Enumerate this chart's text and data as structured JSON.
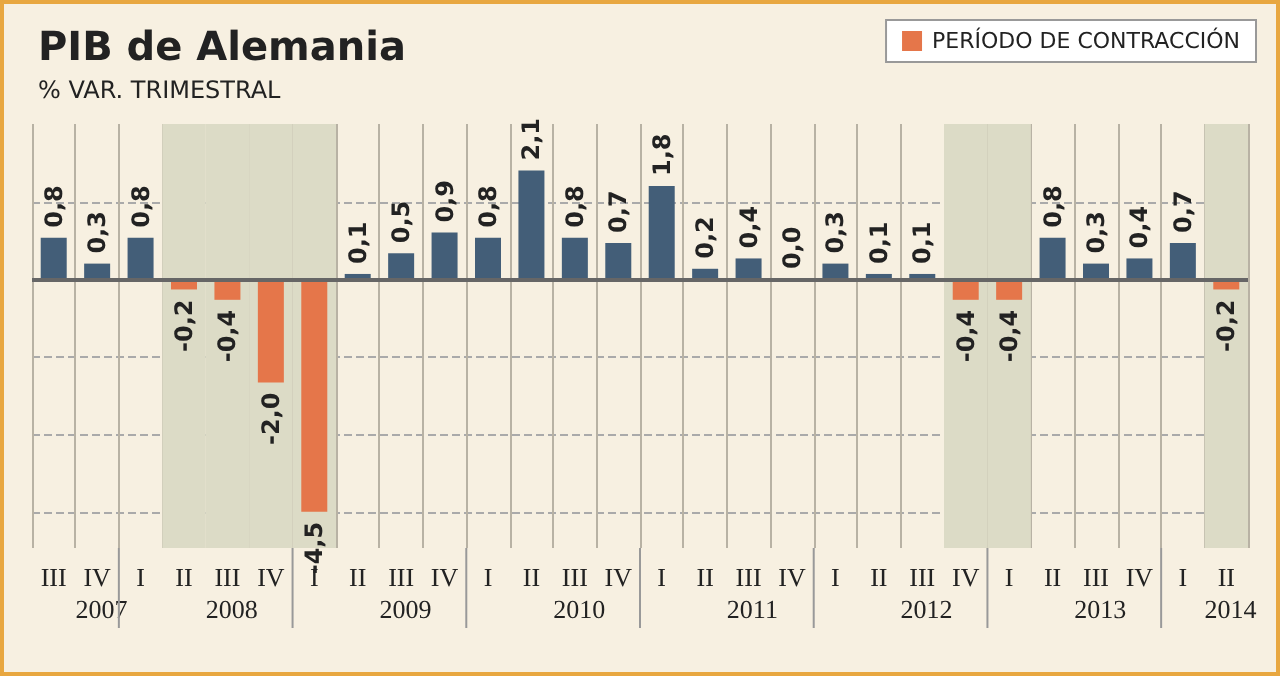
{
  "chart_data": {
    "type": "bar",
    "title": "PIB de Alemania",
    "subtitle": "% VAR. TRIMESTRAL",
    "categories": [
      "III",
      "IV",
      "I",
      "II",
      "III",
      "IV",
      "I",
      "II",
      "III",
      "IV",
      "I",
      "II",
      "III",
      "IV",
      "I",
      "II",
      "III",
      "IV",
      "I",
      "II",
      "III",
      "IV",
      "I",
      "II",
      "III",
      "IV",
      "I",
      "II"
    ],
    "annotations": [
      "2007",
      "2008",
      "2009",
      "2010",
      "2011",
      "2012",
      "2013",
      "2014"
    ],
    "stacked": true,
    "series": [
      {
        "color": "#435e78",
        "values": [
          0.8,
          0.3,
          0.8,
          null,
          null,
          null,
          null,
          0.1,
          0.5,
          0.9,
          0.8,
          2.1,
          0.8,
          0.7,
          1.8,
          0.2,
          0.4,
          0.0,
          0.3,
          0.1,
          0.1,
          null,
          null,
          0.8,
          0.3,
          0.4,
          0.7,
          null
        ],
        "value_labels": [
          "0,8",
          "0,3",
          "0,8",
          null,
          null,
          null,
          null,
          "0,1",
          "0,5",
          "0,9",
          "0,8",
          "2,1",
          "0,8",
          "0,7",
          "1,8",
          "0,2",
          "0,4",
          "0,0",
          "0,3",
          "0,1",
          "0,1",
          null,
          null,
          "0,8",
          "0,3",
          "0,4",
          "0,7",
          null
        ]
      },
      {
        "name": "PERÍODO DE CONTRACCIÓN",
        "color": "#e5764a",
        "values": [
          null,
          null,
          null,
          -0.2,
          -0.4,
          -2.0,
          -4.5,
          null,
          null,
          null,
          null,
          null,
          null,
          null,
          null,
          null,
          null,
          null,
          null,
          null,
          null,
          -0.4,
          -0.4,
          null,
          null,
          null,
          null,
          -0.2
        ],
        "value_labels": [
          null,
          null,
          null,
          "-0,2",
          "-0,4",
          "-2,0",
          "-4,5",
          null,
          null,
          null,
          null,
          null,
          null,
          null,
          null,
          null,
          null,
          null,
          null,
          null,
          null,
          "-0,4",
          "-0,4",
          null,
          null,
          null,
          null,
          "-0,2"
        ]
      }
    ],
    "ylim": [
      -5.2,
      3.0
    ],
    "yticks": [
      {
        "value": -4.5,
        "label": null
      },
      {
        "value": -3,
        "label": null
      },
      {
        "value": -1.5,
        "label": null
      },
      {
        "value": 0,
        "label": null
      },
      {
        "value": 1.5,
        "label": null
      }
    ],
    "tick_labels": "x",
    "grid": "y",
    "legend": "top right"
  }
}
